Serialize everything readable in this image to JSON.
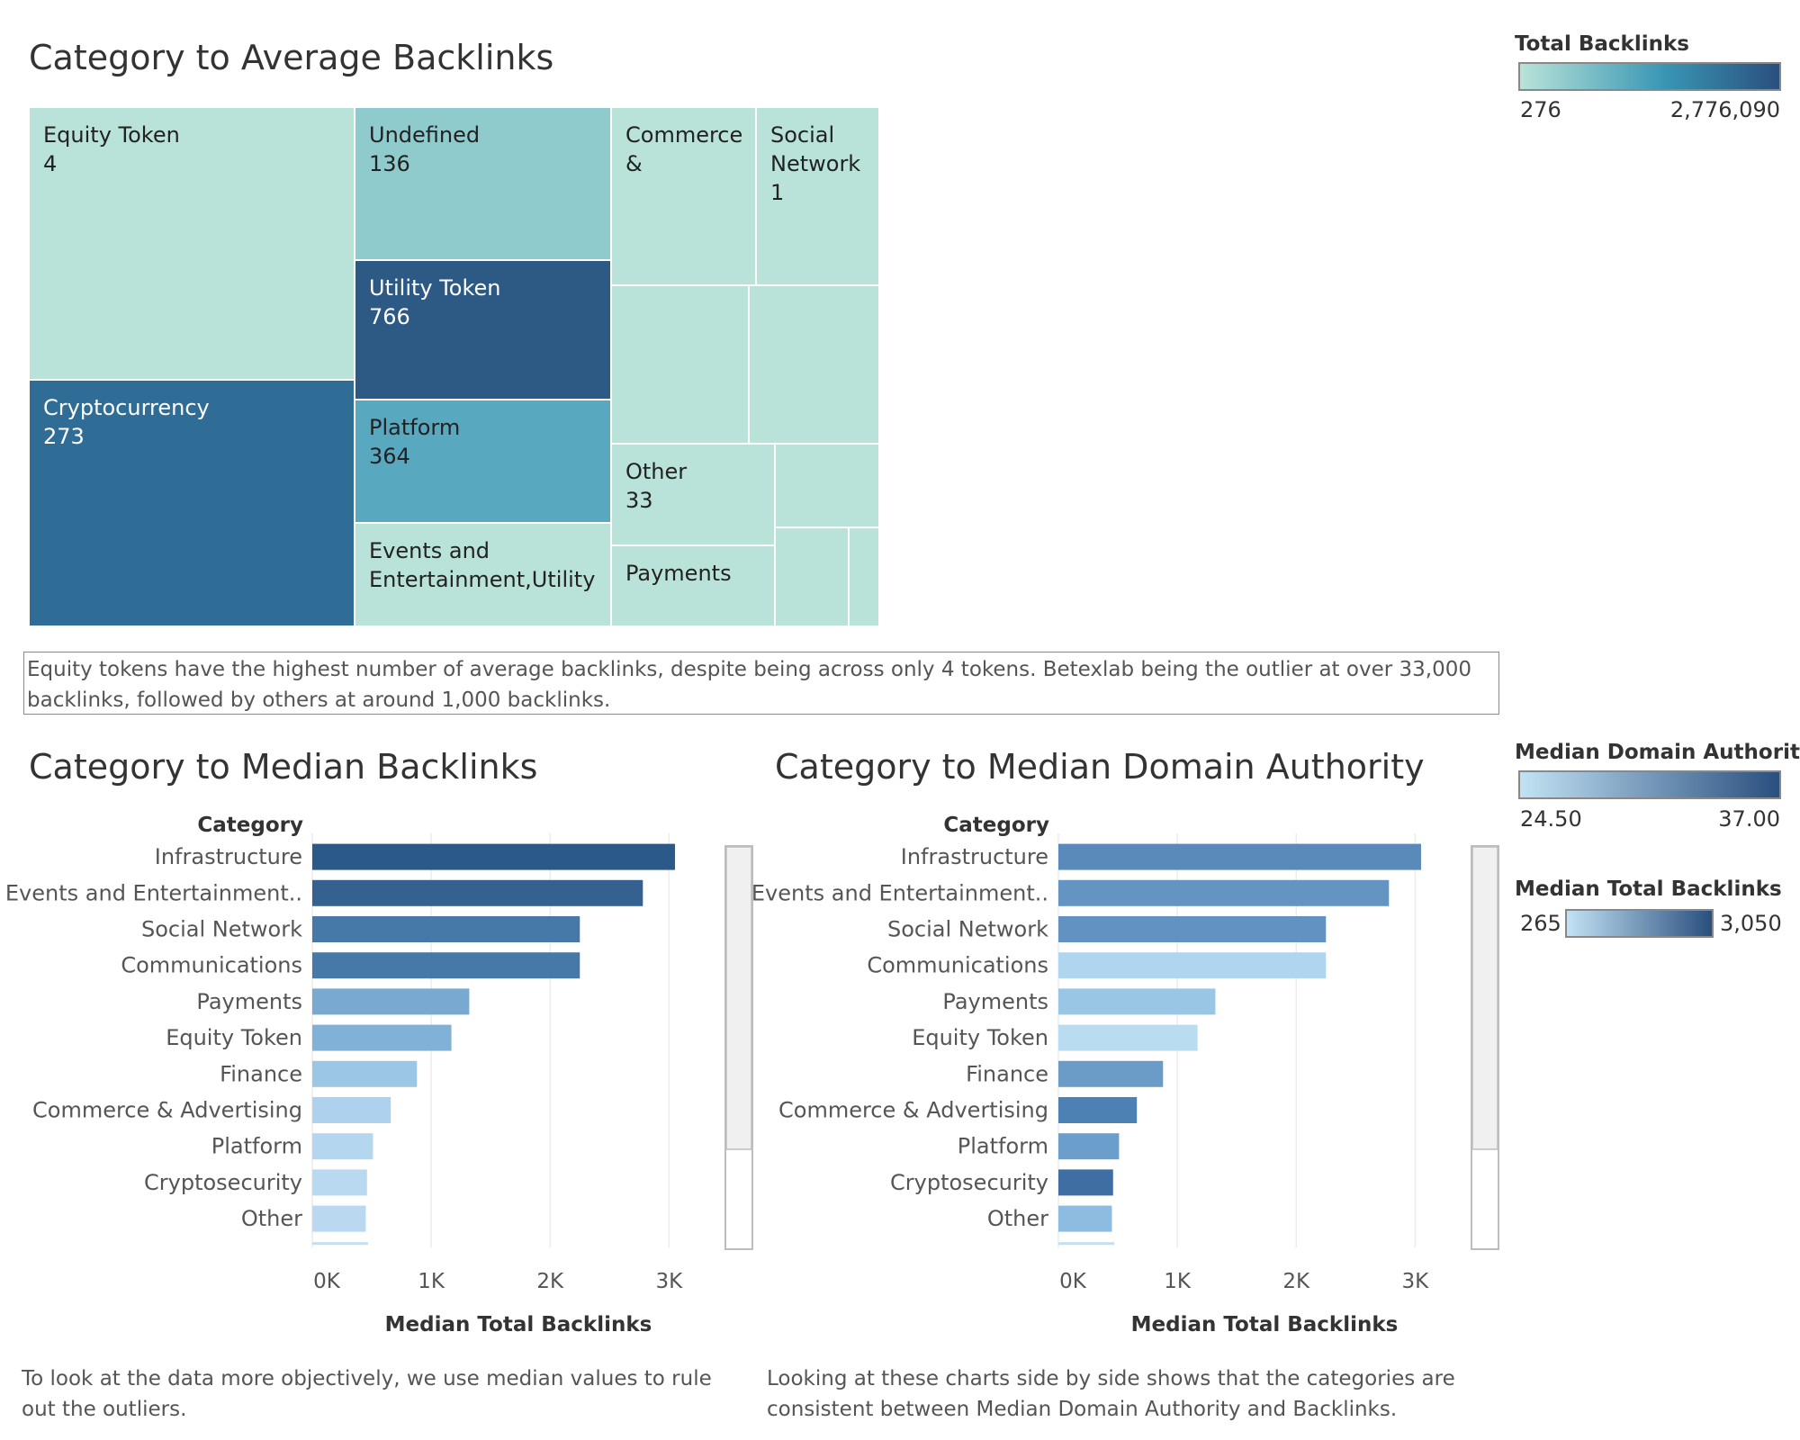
{
  "treemap": {
    "title": "Category to Average Backlinks",
    "color_legend": {
      "title": "Total Backlinks",
      "min_label": "276",
      "max_label": "2,776,090",
      "low_color": "#b9e3d9",
      "high_color": "#2a4f7e"
    },
    "cells": [
      {
        "label": "Equity Token",
        "value": "4",
        "color": "#b9e3d9"
      },
      {
        "label": "Cryptocurrency",
        "value": "273",
        "color": "#2f6d96"
      },
      {
        "label": "Undefined",
        "value": "136",
        "color": "#8fcbcc"
      },
      {
        "label": "Utility Token",
        "value": "766",
        "color": "#2d5985"
      },
      {
        "label": "Platform",
        "value": "364",
        "color": "#58a8c0"
      },
      {
        "label": "Events and Entertainment,Utility",
        "value": "",
        "color": "#b9e3d9"
      },
      {
        "label": "Commerce &",
        "value": "",
        "color": "#b9e3d9"
      },
      {
        "label": "Social Network",
        "value": "1",
        "color": "#b9e3d9"
      },
      {
        "label": "",
        "value": "",
        "color": "#b9e3d9"
      },
      {
        "label": "",
        "value": "",
        "color": "#b9e3d9"
      },
      {
        "label": "Other",
        "value": "33",
        "color": "#b9e3d9"
      },
      {
        "label": "",
        "value": "",
        "color": "#b9e3d9"
      },
      {
        "label": "Payments",
        "value": "",
        "color": "#b9e3d9"
      },
      {
        "label": "",
        "value": "",
        "color": "#b9e3d9"
      },
      {
        "label": "",
        "value": "",
        "color": "#b9e3d9"
      }
    ]
  },
  "note_text": "Equity tokens have the highest number of average backlinks, despite being across only 4 tokens.  Betexlab being the outlier at over 33,000 backlinks, followed by others at around 1,000 backlinks.",
  "chart_median_backlinks": {
    "title": "Category to Median Backlinks",
    "caption": "To look at the data more objectively, we use median values to rule out the outliers."
  },
  "chart_median_da": {
    "title": "Category to Median Domain Authority",
    "caption": "Looking at these charts side by side shows that the categories are consistent between Median Domain Authority and Backlinks."
  },
  "legend_da": {
    "title": "Median Domain Authority",
    "min_label": "24.50",
    "max_label": "37.00",
    "low_color": "#c2e2f4",
    "high_color": "#2a4f7e"
  },
  "legend_backlinks": {
    "title": "Median Total Backlinks",
    "min_label": "265",
    "max_label": "3,050",
    "low_color": "#c2e2f4",
    "high_color": "#2a4f7e"
  },
  "chart_data": [
    {
      "type": "treemap",
      "title": "Category to Average Backlinks",
      "size_measure": "Average Backlinks",
      "color_measure": "Total Backlinks",
      "color_range": [
        276,
        2776090
      ],
      "items": [
        {
          "category": "Equity Token",
          "label_value": 4
        },
        {
          "category": "Cryptocurrency",
          "label_value": 273
        },
        {
          "category": "Undefined",
          "label_value": 136
        },
        {
          "category": "Utility Token",
          "label_value": 766
        },
        {
          "category": "Platform",
          "label_value": 364
        },
        {
          "category": "Events and Entertainment,Utility"
        },
        {
          "category": "Commerce &"
        },
        {
          "category": "Social Network",
          "label_value": 1
        },
        {
          "category": "Other",
          "label_value": 33
        },
        {
          "category": "Payments"
        }
      ]
    },
    {
      "type": "bar",
      "orientation": "horizontal",
      "title": "Category to Median Backlinks",
      "ylabel": "Category",
      "xlabel": "Median Total Backlinks",
      "xticks": [
        "0K",
        "1K",
        "2K",
        "3K"
      ],
      "xlim": [
        0,
        3300
      ],
      "categories": [
        "Infrastructure",
        "Events and Entertainment..",
        "Social Network",
        "Communications",
        "Payments",
        "Equity Token",
        "Finance",
        "Commerce & Advertising",
        "Platform",
        "Cryptosecurity",
        "Other"
      ],
      "values": [
        3050,
        2780,
        2250,
        2250,
        1320,
        1170,
        880,
        660,
        510,
        460,
        450
      ],
      "color_by": "Median Total Backlinks",
      "color_range": [
        265,
        3050
      ],
      "colors": [
        "#2c5a88",
        "#34618f",
        "#4779a8",
        "#4779a8",
        "#79a9d0",
        "#82b1d8",
        "#9cc6e6",
        "#aed2ee",
        "#b4d6ef",
        "#b8d9f0",
        "#bad9f0"
      ]
    },
    {
      "type": "bar",
      "orientation": "horizontal",
      "title": "Category to Median Domain Authority",
      "ylabel": "Category",
      "xlabel": "Median Total Backlinks",
      "xticks": [
        "0K",
        "1K",
        "2K",
        "3K"
      ],
      "xlim": [
        0,
        3300
      ],
      "categories": [
        "Infrastructure",
        "Events and Entertainment..",
        "Social Network",
        "Communications",
        "Payments",
        "Equity Token",
        "Finance",
        "Commerce & Advertising",
        "Platform",
        "Cryptosecurity",
        "Other"
      ],
      "values": [
        3050,
        2780,
        2250,
        2250,
        1320,
        1170,
        880,
        660,
        510,
        460,
        450
      ],
      "color_by": "Median Domain Authority",
      "color_range": [
        24.5,
        37.0
      ],
      "colors": [
        "#5a8ab9",
        "#6495c2",
        "#6293c0",
        "#b0d5ee",
        "#9ac6e5",
        "#b9dcf1",
        "#6b9cc8",
        "#4d80b3",
        "#6c9ecb",
        "#3f6ea3",
        "#8dbce0"
      ]
    }
  ]
}
